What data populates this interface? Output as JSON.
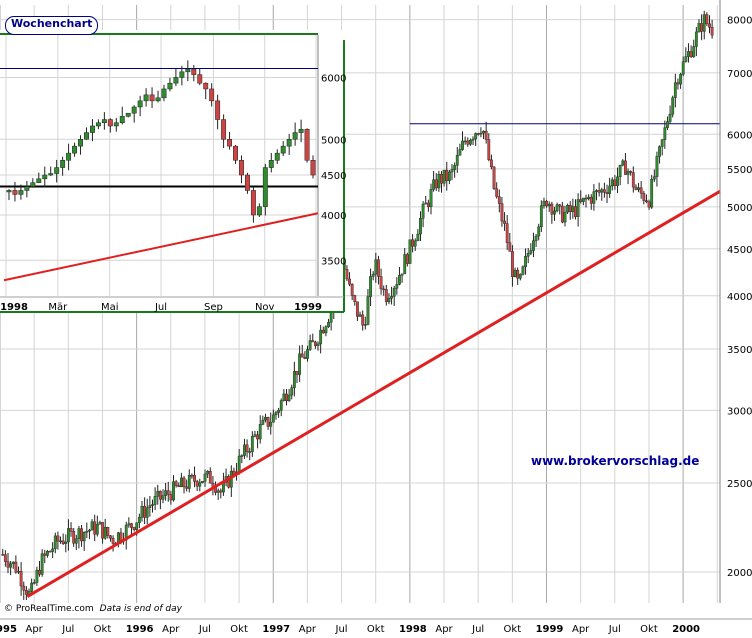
{
  "chart_data": [
    {
      "type": "candlestick",
      "title": "",
      "x_tick_labels": [
        "1995",
        "Apr",
        "Jul",
        "Okt",
        "1996",
        "Apr",
        "Jul",
        "Okt",
        "1997",
        "Apr",
        "Jul",
        "Okt",
        "1998",
        "Apr",
        "Jul",
        "Okt",
        "1999",
        "Apr",
        "Jul",
        "Okt",
        "2000"
      ],
      "y_tick_labels": [
        2000,
        2500,
        3000,
        3500,
        4000,
        4500,
        5000,
        5500,
        6000,
        7000,
        8000
      ],
      "y_scale": "log",
      "ylim": [
        1850,
        8300
      ],
      "xlim": [
        1995.0,
        2000.27
      ],
      "grid": true,
      "anchors": [
        [
          1995.02,
          2090
        ],
        [
          1995.12,
          2020
        ],
        [
          1995.22,
          1880
        ],
        [
          1995.3,
          2050
        ],
        [
          1995.42,
          2160
        ],
        [
          1995.55,
          2200
        ],
        [
          1995.72,
          2240
        ],
        [
          1995.82,
          2170
        ],
        [
          1995.95,
          2240
        ],
        [
          1996.1,
          2370
        ],
        [
          1996.3,
          2470
        ],
        [
          1996.45,
          2530
        ],
        [
          1996.55,
          2530
        ],
        [
          1996.62,
          2440
        ],
        [
          1996.75,
          2640
        ],
        [
          1996.9,
          2860
        ],
        [
          1997.0,
          2950
        ],
        [
          1997.1,
          3150
        ],
        [
          1997.2,
          3400
        ],
        [
          1997.3,
          3550
        ],
        [
          1997.42,
          3850
        ],
        [
          1997.5,
          4400
        ],
        [
          1997.58,
          3950
        ],
        [
          1997.66,
          3700
        ],
        [
          1997.74,
          4350
        ],
        [
          1997.82,
          4000
        ],
        [
          1997.9,
          4150
        ],
        [
          1998.0,
          4500
        ],
        [
          1998.1,
          4950
        ],
        [
          1998.2,
          5350
        ],
        [
          1998.3,
          5400
        ],
        [
          1998.4,
          5900
        ],
        [
          1998.53,
          6150
        ],
        [
          1998.62,
          5200
        ],
        [
          1998.7,
          4700
        ],
        [
          1998.76,
          4200
        ],
        [
          1998.8,
          4100
        ],
        [
          1998.9,
          4650
        ],
        [
          1999.0,
          5100
        ],
        [
          1999.1,
          4900
        ],
        [
          1999.2,
          4950
        ],
        [
          1999.3,
          5100
        ],
        [
          1999.4,
          5200
        ],
        [
          1999.5,
          5350
        ],
        [
          1999.58,
          5550
        ],
        [
          1999.66,
          5200
        ],
        [
          1999.75,
          5100
        ],
        [
          1999.85,
          5900
        ],
        [
          1999.95,
          6900
        ],
        [
          2000.05,
          7400
        ],
        [
          2000.15,
          8000
        ],
        [
          2000.22,
          7800
        ]
      ],
      "support_line": [
        [
          1995.2,
          1880
        ],
        [
          2000.27,
          5200
        ]
      ],
      "resistance_line": [
        [
          1998.0,
          6160
        ],
        [
          2000.27,
          6160
        ]
      ],
      "colors": {
        "up": "#2e8b2e",
        "down": "#cc4444",
        "support": "#e02020",
        "resistance": "#000080",
        "grid": "#d4d4d4"
      }
    },
    {
      "type": "candlestick",
      "title": "Wochenchart",
      "x_tick_labels": [
        "1998",
        "Mär",
        "Mai",
        "Jul",
        "Sep",
        "Nov",
        "1999"
      ],
      "y_tick_labels": [
        3500,
        4000,
        4500,
        5000,
        6000
      ],
      "y_scale": "log",
      "ylim": [
        3150,
        6800
      ],
      "xlim": [
        0,
        52
      ],
      "grid": true,
      "weekly_closes": [
        4300,
        4250,
        4300,
        4350,
        4400,
        4450,
        4500,
        4520,
        4600,
        4700,
        4800,
        4900,
        5000,
        5100,
        5200,
        5250,
        5300,
        5200,
        5250,
        5350,
        5400,
        5500,
        5600,
        5700,
        5600,
        5650,
        5800,
        5900,
        6000,
        6100,
        6150,
        6050,
        5900,
        5800,
        5600,
        5300,
        5000,
        4900,
        4700,
        4500,
        4300,
        4000,
        4100,
        4600,
        4700,
        4800,
        4900,
        5000,
        5100,
        5150,
        4700,
        4500
      ],
      "support_line": [
        [
          0,
          3300
        ],
        [
          52,
          4020
        ]
      ],
      "horizontal_lines": [
        6160,
        4350
      ],
      "colors": {
        "up": "#2e8b2e",
        "down": "#cc4444",
        "support": "#e02020",
        "resistance": "#000080",
        "level": "#000000",
        "grid": "#d4d4d4"
      }
    }
  ],
  "text": {
    "inset_badge": "Wochenchart",
    "credit_source": "© ProRealTime.com",
    "credit_note": "Data is end of day",
    "watermark_url": "www.brokervorschlag.de"
  }
}
